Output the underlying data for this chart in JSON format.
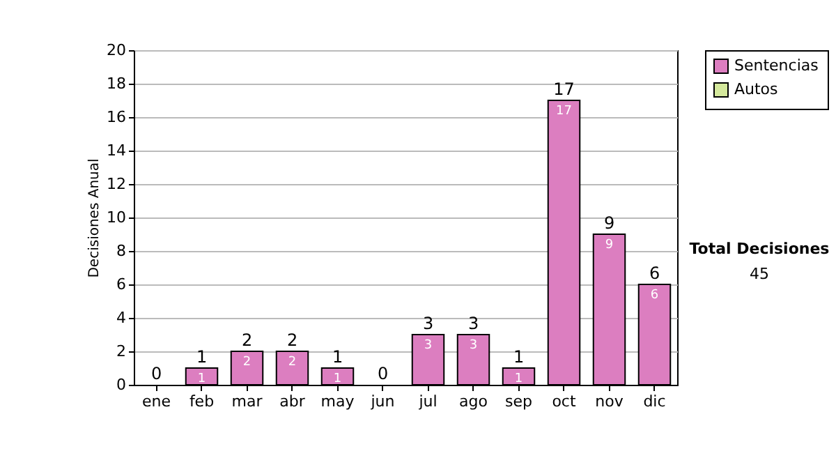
{
  "chart_data": {
    "type": "bar",
    "stacked": true,
    "ylabel": "Decisiones Anual",
    "categories": [
      "ene",
      "feb",
      "mar",
      "abr",
      "may",
      "jun",
      "jul",
      "ago",
      "sep",
      "oct",
      "nov",
      "dic"
    ],
    "series": [
      {
        "name": "Sentencias",
        "color": "#dc7ec0",
        "values": [
          0,
          1,
          2,
          2,
          1,
          0,
          3,
          3,
          1,
          17,
          9,
          6
        ],
        "value_labels": [
          null,
          "1",
          "2",
          "2",
          "1",
          null,
          "3",
          "3",
          "1",
          "17",
          "9",
          "6"
        ]
      },
      {
        "name": "Autos",
        "color": "#d4e89c",
        "values": [
          0,
          0,
          0,
          0,
          0,
          0,
          0,
          0,
          0,
          0,
          0,
          0
        ]
      }
    ],
    "totals": [
      "0",
      "1",
      "2",
      "2",
      "1",
      "0",
      "3",
      "3",
      "1",
      "17",
      "9",
      "6"
    ],
    "ylim": [
      0,
      20
    ],
    "yticks": [
      0,
      2,
      4,
      6,
      8,
      10,
      12,
      14,
      16,
      18,
      20
    ],
    "grid": "y",
    "legend": "right",
    "annotations": [
      "Total Decisiones",
      "45"
    ]
  }
}
